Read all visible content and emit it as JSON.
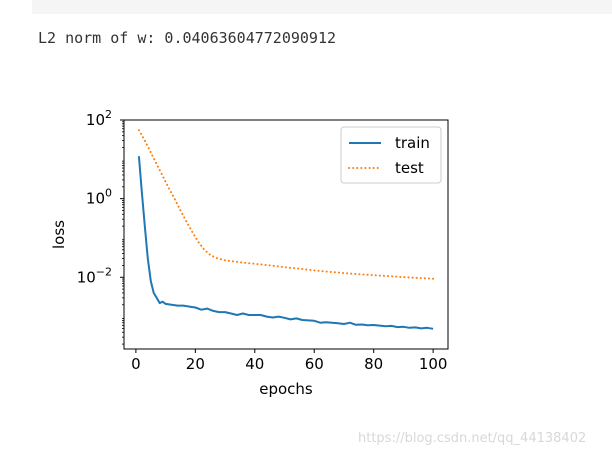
{
  "output": {
    "line": "L2 norm of w: 0.04063604772090912"
  },
  "watermark": "https://blog.csdn.net/qq_44138402",
  "chart_data": {
    "type": "line",
    "xlabel": "epochs",
    "ylabel": "loss",
    "yscale": "log",
    "xlim": [
      -4,
      105
    ],
    "ylim": [
      0.00015,
      100
    ],
    "xticks": [
      0,
      20,
      40,
      60,
      80,
      100
    ],
    "yticks": [
      {
        "value": 100,
        "base": "10",
        "exp": "2"
      },
      {
        "value": 1,
        "base": "10",
        "exp": "0"
      },
      {
        "value": 0.01,
        "base": "10",
        "exp": "−2"
      }
    ],
    "legend_position": "top-right",
    "series": [
      {
        "name": "train",
        "color": "#1f77b4",
        "style": "solid",
        "x": [
          1,
          2,
          3,
          4,
          5,
          6,
          7,
          8,
          9,
          10,
          12,
          14,
          16,
          18,
          20,
          22,
          24,
          26,
          28,
          30,
          32,
          34,
          36,
          38,
          40,
          42,
          44,
          46,
          48,
          50,
          52,
          54,
          56,
          58,
          60,
          62,
          64,
          66,
          68,
          70,
          72,
          74,
          76,
          78,
          80,
          82,
          84,
          86,
          88,
          90,
          92,
          94,
          96,
          98,
          100
        ],
        "y": [
          12,
          1.5,
          0.2,
          0.03,
          0.008,
          0.004,
          0.003,
          0.0022,
          0.0024,
          0.0021,
          0.002,
          0.0019,
          0.0019,
          0.0018,
          0.0017,
          0.0015,
          0.0016,
          0.0014,
          0.0013,
          0.0013,
          0.0012,
          0.0011,
          0.0012,
          0.0011,
          0.0011,
          0.0011,
          0.001,
          0.00095,
          0.001,
          0.00093,
          0.00085,
          0.0009,
          0.00082,
          0.0008,
          0.00078,
          0.0007,
          0.00072,
          0.0007,
          0.00068,
          0.00065,
          0.0007,
          0.00062,
          0.00063,
          0.0006,
          0.00061,
          0.00059,
          0.00057,
          0.00058,
          0.00054,
          0.00055,
          0.00052,
          0.00053,
          0.0005,
          0.00052,
          0.00049
        ]
      },
      {
        "name": "test",
        "color": "#ff7f0e",
        "style": "dotted",
        "x": [
          1,
          3,
          5,
          7,
          9,
          11,
          13,
          15,
          17,
          19,
          21,
          23,
          25,
          27,
          30,
          35,
          40,
          45,
          50,
          55,
          60,
          65,
          70,
          75,
          80,
          85,
          90,
          95,
          100
        ],
        "y": [
          55,
          30,
          15,
          7.5,
          3.8,
          1.9,
          1,
          0.5,
          0.26,
          0.14,
          0.08,
          0.05,
          0.037,
          0.031,
          0.027,
          0.024,
          0.022,
          0.02,
          0.018,
          0.0165,
          0.015,
          0.0138,
          0.0128,
          0.012,
          0.0113,
          0.0107,
          0.0101,
          0.0096,
          0.0092
        ]
      }
    ]
  }
}
